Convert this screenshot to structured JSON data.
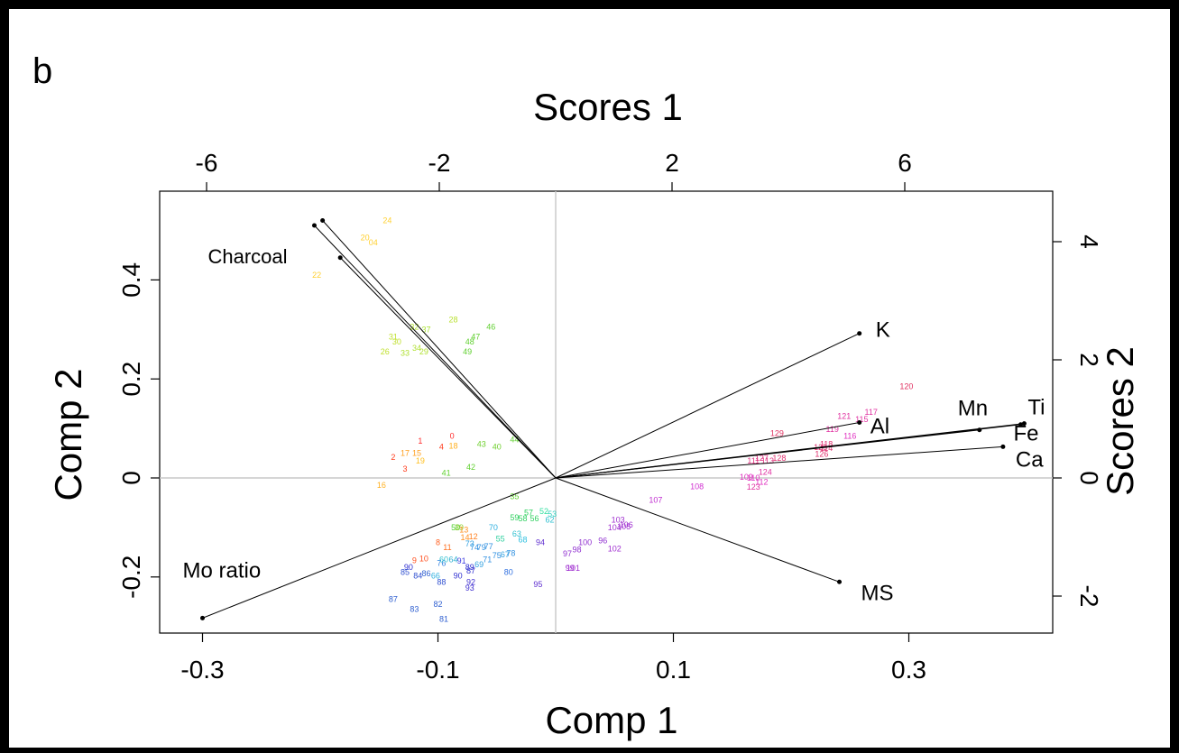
{
  "panel_label": "b",
  "chart_data": {
    "type": "scatter",
    "subtype": "PCA biplot",
    "xlabel": "Comp 1",
    "ylabel": "Comp 2",
    "top_axis_label": "Scores 1",
    "right_axis_label": "Scores 2",
    "xlim": [
      -0.3,
      0.4
    ],
    "ylim": [
      -0.3,
      0.5
    ],
    "x_ticks": [
      -0.3,
      -0.1,
      0.1,
      0.3
    ],
    "y_ticks": [
      -0.2,
      0,
      0.2,
      0.4
    ],
    "top_ticks": [
      -6,
      -2,
      2,
      6
    ],
    "right_ticks": [
      -2,
      0,
      2,
      4
    ],
    "x_tick_labels": [
      "-0.3",
      "-0.1",
      "0.1",
      "0.3"
    ],
    "y_tick_labels": [
      "-0.2",
      "0",
      "0.2",
      "0.4"
    ],
    "top_tick_labels": [
      "-6",
      "-2",
      "2",
      "6"
    ],
    "right_tick_labels": [
      "-2",
      "0",
      "2",
      "4"
    ],
    "reference_lines": {
      "x": 0,
      "y": 0
    },
    "loadings": [
      {
        "name": "Charcoal",
        "x": -0.205,
        "y": 0.51,
        "show_label": true
      },
      {
        "name": "",
        "x": -0.198,
        "y": 0.52,
        "show_label": false
      },
      {
        "name": "",
        "x": -0.183,
        "y": 0.445,
        "show_label": false
      },
      {
        "name": "K",
        "x": 0.258,
        "y": 0.292,
        "show_label": true
      },
      {
        "name": "Al",
        "x": 0.258,
        "y": 0.112,
        "show_label": true
      },
      {
        "name": "Mn",
        "x": 0.36,
        "y": 0.097,
        "show_label": true
      },
      {
        "name": "Ti",
        "x": 0.398,
        "y": 0.11,
        "show_label": true
      },
      {
        "name": "Fe",
        "x": 0.395,
        "y": 0.108,
        "show_label": true
      },
      {
        "name": "Ca",
        "x": 0.38,
        "y": 0.063,
        "show_label": true
      },
      {
        "name": "MS",
        "x": 0.241,
        "y": -0.21,
        "show_label": true
      },
      {
        "name": "Mo ratio",
        "x": -0.3,
        "y": -0.283,
        "show_label": true
      }
    ],
    "scores": [
      {
        "id": "0",
        "x": -0.088,
        "y": 0.085,
        "color": "#ff2a2a"
      },
      {
        "id": "1",
        "x": -0.115,
        "y": 0.075,
        "color": "#ff2a2a"
      },
      {
        "id": "2",
        "x": -0.138,
        "y": 0.042,
        "color": "#ff3a1a"
      },
      {
        "id": "3",
        "x": -0.128,
        "y": 0.018,
        "color": "#ff3a1a"
      },
      {
        "id": "4",
        "x": -0.097,
        "y": 0.063,
        "color": "#ff3a1a"
      },
      {
        "id": "18",
        "x": -0.087,
        "y": 0.065,
        "color": "#ffb020"
      },
      {
        "id": "17",
        "x": -0.128,
        "y": 0.05,
        "color": "#ffa020"
      },
      {
        "id": "15",
        "x": -0.118,
        "y": 0.05,
        "color": "#ffa020"
      },
      {
        "id": "19",
        "x": -0.115,
        "y": 0.035,
        "color": "#ffc020"
      },
      {
        "id": "16",
        "x": -0.148,
        "y": -0.015,
        "color": "#ffb020"
      },
      {
        "id": "24",
        "x": -0.143,
        "y": 0.52,
        "color": "#ffd030"
      },
      {
        "id": "20",
        "x": -0.162,
        "y": 0.485,
        "color": "#ffd030"
      },
      {
        "id": "04",
        "x": -0.155,
        "y": 0.475,
        "color": "#ffd030"
      },
      {
        "id": "22",
        "x": -0.203,
        "y": 0.41,
        "color": "#ffd030"
      },
      {
        "id": "28",
        "x": -0.087,
        "y": 0.32,
        "color": "#b8e030"
      },
      {
        "id": "31",
        "x": -0.138,
        "y": 0.285,
        "color": "#c0e030"
      },
      {
        "id": "30",
        "x": -0.135,
        "y": 0.275,
        "color": "#c0e030"
      },
      {
        "id": "26",
        "x": -0.145,
        "y": 0.255,
        "color": "#c0e030"
      },
      {
        "id": "33",
        "x": -0.128,
        "y": 0.252,
        "color": "#b0e030"
      },
      {
        "id": "34",
        "x": -0.118,
        "y": 0.262,
        "color": "#b0e030"
      },
      {
        "id": "29",
        "x": -0.112,
        "y": 0.255,
        "color": "#b0e030"
      },
      {
        "id": "32",
        "x": -0.12,
        "y": 0.305,
        "color": "#b0e030"
      },
      {
        "id": "37",
        "x": -0.11,
        "y": 0.3,
        "color": "#a8e030"
      },
      {
        "id": "47",
        "x": -0.068,
        "y": 0.285,
        "color": "#60d030"
      },
      {
        "id": "46",
        "x": -0.055,
        "y": 0.305,
        "color": "#60d030"
      },
      {
        "id": "48",
        "x": -0.073,
        "y": 0.275,
        "color": "#60d030"
      },
      {
        "id": "49",
        "x": -0.075,
        "y": 0.255,
        "color": "#60d030"
      },
      {
        "id": "43",
        "x": -0.063,
        "y": 0.068,
        "color": "#70d030"
      },
      {
        "id": "40",
        "x": -0.05,
        "y": 0.063,
        "color": "#70d030"
      },
      {
        "id": "44",
        "x": -0.035,
        "y": 0.077,
        "color": "#60d030"
      },
      {
        "id": "42",
        "x": -0.072,
        "y": 0.022,
        "color": "#60d030"
      },
      {
        "id": "41",
        "x": -0.093,
        "y": 0.01,
        "color": "#60d030"
      },
      {
        "id": "35",
        "x": -0.035,
        "y": -0.037,
        "color": "#60d030"
      },
      {
        "id": "52",
        "x": -0.01,
        "y": -0.067,
        "color": "#30e0a0"
      },
      {
        "id": "53",
        "x": -0.003,
        "y": -0.073,
        "color": "#30d0c0"
      },
      {
        "id": "62",
        "x": -0.005,
        "y": -0.085,
        "color": "#30c0d0"
      },
      {
        "id": "57",
        "x": -0.023,
        "y": -0.07,
        "color": "#30d060"
      },
      {
        "id": "59",
        "x": -0.035,
        "y": -0.08,
        "color": "#30d060"
      },
      {
        "id": "58",
        "x": -0.028,
        "y": -0.082,
        "color": "#30d060"
      },
      {
        "id": "56",
        "x": -0.018,
        "y": -0.082,
        "color": "#30d060"
      },
      {
        "id": "70",
        "x": -0.053,
        "y": -0.1,
        "color": "#30b0e0"
      },
      {
        "id": "63",
        "x": -0.033,
        "y": -0.113,
        "color": "#30c0d0"
      },
      {
        "id": "68",
        "x": -0.028,
        "y": -0.125,
        "color": "#30c0e0"
      },
      {
        "id": "55",
        "x": -0.047,
        "y": -0.123,
        "color": "#30d0a0"
      },
      {
        "id": "50",
        "x": -0.085,
        "y": -0.1,
        "color": "#50d030"
      },
      {
        "id": "39",
        "x": -0.082,
        "y": -0.1,
        "color": "#90d030"
      },
      {
        "id": "13",
        "x": -0.078,
        "y": -0.105,
        "color": "#ff9020"
      },
      {
        "id": "12",
        "x": -0.07,
        "y": -0.118,
        "color": "#ff8020"
      },
      {
        "id": "14",
        "x": -0.077,
        "y": -0.12,
        "color": "#ff9020"
      },
      {
        "id": "8",
        "x": -0.1,
        "y": -0.13,
        "color": "#ff6020"
      },
      {
        "id": "11",
        "x": -0.092,
        "y": -0.14,
        "color": "#ff7020"
      },
      {
        "id": "10",
        "x": -0.112,
        "y": -0.163,
        "color": "#ff5020"
      },
      {
        "id": "9",
        "x": -0.12,
        "y": -0.167,
        "color": "#ff5020"
      },
      {
        "id": "77",
        "x": -0.057,
        "y": -0.138,
        "color": "#3090e0"
      },
      {
        "id": "78",
        "x": -0.038,
        "y": -0.152,
        "color": "#3090e0"
      },
      {
        "id": "67",
        "x": -0.043,
        "y": -0.155,
        "color": "#30a0e0"
      },
      {
        "id": "75",
        "x": -0.05,
        "y": -0.157,
        "color": "#3090e0"
      },
      {
        "id": "79",
        "x": -0.063,
        "y": -0.14,
        "color": "#3090e0"
      },
      {
        "id": "74",
        "x": -0.069,
        "y": -0.14,
        "color": "#3090e0"
      },
      {
        "id": "73",
        "x": -0.073,
        "y": -0.133,
        "color": "#30a0e0"
      },
      {
        "id": "76",
        "x": -0.097,
        "y": -0.172,
        "color": "#3080e0"
      },
      {
        "id": "60",
        "x": -0.095,
        "y": -0.165,
        "color": "#30c0d0"
      },
      {
        "id": "64",
        "x": -0.087,
        "y": -0.165,
        "color": "#30b0d0"
      },
      {
        "id": "91",
        "x": -0.08,
        "y": -0.168,
        "color": "#4040e0"
      },
      {
        "id": "69",
        "x": -0.065,
        "y": -0.175,
        "color": "#30a0e0"
      },
      {
        "id": "71",
        "x": -0.058,
        "y": -0.165,
        "color": "#3090e0"
      },
      {
        "id": "90",
        "x": -0.125,
        "y": -0.18,
        "color": "#3030d0"
      },
      {
        "id": "85",
        "x": -0.128,
        "y": -0.19,
        "color": "#3050d0"
      },
      {
        "id": "84",
        "x": -0.117,
        "y": -0.198,
        "color": "#3050d0"
      },
      {
        "id": "86",
        "x": -0.11,
        "y": -0.193,
        "color": "#3060d0"
      },
      {
        "id": "88",
        "x": -0.097,
        "y": -0.21,
        "color": "#3050d0"
      },
      {
        "id": "66",
        "x": -0.102,
        "y": -0.198,
        "color": "#30b0e0"
      },
      {
        "id": "89",
        "x": -0.073,
        "y": -0.18,
        "color": "#3030d0"
      },
      {
        "id": "87b",
        "x": -0.072,
        "y": -0.188,
        "color": "#3030d0"
      },
      {
        "id": "90b",
        "x": -0.083,
        "y": -0.198,
        "color": "#3030d0"
      },
      {
        "id": "92",
        "x": -0.072,
        "y": -0.21,
        "color": "#4030d0"
      },
      {
        "id": "93",
        "x": -0.073,
        "y": -0.222,
        "color": "#4030d0"
      },
      {
        "id": "80",
        "x": -0.04,
        "y": -0.19,
        "color": "#3070e0"
      },
      {
        "id": "95",
        "x": -0.015,
        "y": -0.215,
        "color": "#6030d0"
      },
      {
        "id": "94",
        "x": -0.013,
        "y": -0.13,
        "color": "#6030d0"
      },
      {
        "id": "87",
        "x": -0.138,
        "y": -0.245,
        "color": "#3060d0"
      },
      {
        "id": "83",
        "x": -0.12,
        "y": -0.265,
        "color": "#3060d0"
      },
      {
        "id": "82",
        "x": -0.1,
        "y": -0.255,
        "color": "#3060d0"
      },
      {
        "id": "81",
        "x": -0.095,
        "y": -0.285,
        "color": "#3060d0"
      },
      {
        "id": "97",
        "x": 0.01,
        "y": -0.153,
        "color": "#9030d0"
      },
      {
        "id": "98",
        "x": 0.018,
        "y": -0.145,
        "color": "#9030d0"
      },
      {
        "id": "100",
        "x": 0.025,
        "y": -0.13,
        "color": "#9030d0"
      },
      {
        "id": "96",
        "x": 0.04,
        "y": -0.127,
        "color": "#9030d0"
      },
      {
        "id": "102",
        "x": 0.05,
        "y": -0.143,
        "color": "#a030d0"
      },
      {
        "id": "99",
        "x": 0.012,
        "y": -0.182,
        "color": "#a030d0"
      },
      {
        "id": "101",
        "x": 0.015,
        "y": -0.182,
        "color": "#a030d0"
      },
      {
        "id": "103",
        "x": 0.053,
        "y": -0.085,
        "color": "#a030d0"
      },
      {
        "id": "104",
        "x": 0.05,
        "y": -0.1,
        "color": "#a030d0"
      },
      {
        "id": "105",
        "x": 0.058,
        "y": -0.098,
        "color": "#a030d0"
      },
      {
        "id": "106",
        "x": 0.06,
        "y": -0.095,
        "color": "#a030d0"
      },
      {
        "id": "107",
        "x": 0.085,
        "y": -0.045,
        "color": "#c030d0"
      },
      {
        "id": "108",
        "x": 0.12,
        "y": -0.017,
        "color": "#d030d0"
      },
      {
        "id": "109",
        "x": 0.162,
        "y": 0.002,
        "color": "#e030c0"
      },
      {
        "id": "110",
        "x": 0.168,
        "y": 0.0,
        "color": "#e030c0"
      },
      {
        "id": "112",
        "x": 0.175,
        "y": -0.008,
        "color": "#e030c0"
      },
      {
        "id": "123",
        "x": 0.168,
        "y": -0.018,
        "color": "#e030a0"
      },
      {
        "id": "124",
        "x": 0.178,
        "y": 0.012,
        "color": "#e030a0"
      },
      {
        "id": "111",
        "x": 0.168,
        "y": 0.035,
        "color": "#e03080"
      },
      {
        "id": "113",
        "x": 0.18,
        "y": 0.035,
        "color": "#e03080"
      },
      {
        "id": "127",
        "x": 0.175,
        "y": 0.04,
        "color": "#e03080"
      },
      {
        "id": "128",
        "x": 0.19,
        "y": 0.04,
        "color": "#e03070"
      },
      {
        "id": "126",
        "x": 0.226,
        "y": 0.048,
        "color": "#e03070"
      },
      {
        "id": "125",
        "x": 0.225,
        "y": 0.062,
        "color": "#e03070"
      },
      {
        "id": "114",
        "x": 0.23,
        "y": 0.06,
        "color": "#e03070"
      },
      {
        "id": "118",
        "x": 0.23,
        "y": 0.068,
        "color": "#e03070"
      },
      {
        "id": "129",
        "x": 0.188,
        "y": 0.09,
        "color": "#e03060"
      },
      {
        "id": "119",
        "x": 0.235,
        "y": 0.098,
        "color": "#e030a0"
      },
      {
        "id": "121",
        "x": 0.245,
        "y": 0.125,
        "color": "#e030a0"
      },
      {
        "id": "116",
        "x": 0.25,
        "y": 0.085,
        "color": "#e030c0"
      },
      {
        "id": "117",
        "x": 0.268,
        "y": 0.133,
        "color": "#e030a0"
      },
      {
        "id": "115",
        "x": 0.26,
        "y": 0.118,
        "color": "#e030a0"
      },
      {
        "id": "120",
        "x": 0.298,
        "y": 0.185,
        "color": "#e03060"
      }
    ]
  }
}
